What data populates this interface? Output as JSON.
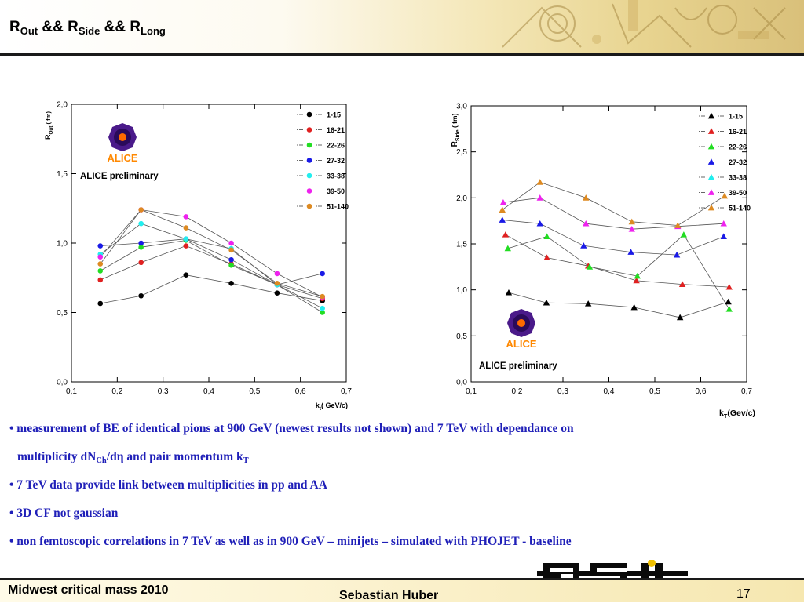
{
  "slide": {
    "title_parts": [
      {
        "t": "R",
        "sub": "Out"
      },
      {
        "t": " && R",
        "sub": "Side"
      },
      {
        "t": " && R",
        "sub": "Long"
      }
    ]
  },
  "bullets": [
    {
      "text": "• measurement of BE of identical pions at 900 GeV (newest results not shown) and 7 TeV with dependance on"
    },
    {
      "pre": "multiplicity dN",
      "sub1": "Ch",
      "mid": "/dη and pair momentum k",
      "sub2": "T"
    },
    {
      "text": "• 7 TeV data provide link between multiplicities in pp and AA"
    },
    {
      "text": "• 3D CF not gaussian"
    },
    {
      "text": "• non femtoscopic correlations in 7 TeV as well as in 900 GeV – minijets – simulated with PHOJET - baseline"
    }
  ],
  "footer": {
    "left": "Midwest critical mass 2010",
    "center": "Sebastian Huber",
    "page": "17",
    "logo_text": "GSI"
  },
  "colors": {
    "bullet_text": "#1f1fb8",
    "series": [
      "#000000",
      "#e02020",
      "#22dd22",
      "#1a1ae6",
      "#22eeee",
      "#ee22ee",
      "#dd8a22"
    ]
  },
  "chart_data": [
    {
      "type": "scatter",
      "marker": "circle",
      "badge": "ALICE",
      "badge_text": "ALICE preliminary",
      "ylabel_main": "R",
      "ylabel_sub": "Out",
      "ylabel_unit": "( fm)",
      "xlabel_main": "k",
      "xlabel_sub": "t",
      "xlabel_unit": "( GeV/c)",
      "xlim": [
        0.1,
        0.7
      ],
      "ylim": [
        0.0,
        2.0
      ],
      "xticks": [
        "0,1",
        "0,2",
        "0,3",
        "0,4",
        "0,5",
        "0,6",
        "0,7"
      ],
      "yticks": [
        "0,0",
        "0,5",
        "1,0",
        "1,5",
        "2,0"
      ],
      "x": [
        0.163,
        0.252,
        0.35,
        0.449,
        0.549,
        0.648
      ],
      "series": [
        {
          "name": "1-15",
          "values": [
            0.565,
            0.62,
            0.77,
            0.71,
            0.64,
            0.585
          ]
        },
        {
          "name": "16-21",
          "values": [
            0.735,
            0.86,
            0.98,
            0.85,
            0.7,
            0.6
          ]
        },
        {
          "name": "22-26",
          "values": [
            0.8,
            0.97,
            1.02,
            0.84,
            0.7,
            0.5
          ]
        },
        {
          "name": "27-32",
          "values": [
            0.98,
            1.0,
            1.03,
            0.88,
            0.7,
            0.78
          ]
        },
        {
          "name": "33-38",
          "values": [
            0.92,
            1.14,
            1.03,
            0.96,
            0.7,
            0.53
          ]
        },
        {
          "name": "39-50",
          "values": [
            0.9,
            1.24,
            1.19,
            1.0,
            0.78,
            0.61
          ]
        },
        {
          "name": "51-140",
          "values": [
            0.85,
            1.24,
            1.11,
            0.95,
            0.71,
            0.615
          ]
        }
      ]
    },
    {
      "type": "scatter",
      "marker": "triangle",
      "badge": "ALICE",
      "badge_text": "ALICE preliminary",
      "ylabel_main": "R",
      "ylabel_sub": "Side",
      "ylabel_unit": "( fm)",
      "xlabel_main": "k",
      "xlabel_sub": "T",
      "xlabel_unit": "(Gev/c)",
      "xlim": [
        0.1,
        0.7
      ],
      "ylim": [
        0.0,
        3.0
      ],
      "xticks": [
        "0,1",
        "0,2",
        "0,3",
        "0,4",
        "0,5",
        "0,6",
        "0,7"
      ],
      "yticks": [
        "0,0",
        "0,5",
        "1,0",
        "1,5",
        "2,0",
        "2,5",
        "3,0"
      ],
      "series": [
        {
          "name": "1-15",
          "x": [
            0.182,
            0.264,
            0.355,
            0.455,
            0.555,
            0.66
          ],
          "values": [
            0.97,
            0.86,
            0.85,
            0.81,
            0.7,
            0.87
          ]
        },
        {
          "name": "16-21",
          "x": [
            0.175,
            0.265,
            0.355,
            0.46,
            0.56,
            0.662
          ],
          "values": [
            1.6,
            1.35,
            1.26,
            1.1,
            1.06,
            1.03
          ]
        },
        {
          "name": "22-26",
          "x": [
            0.18,
            0.265,
            0.358,
            0.462,
            0.563,
            0.662
          ],
          "values": [
            1.45,
            1.58,
            1.25,
            1.15,
            1.6,
            0.79
          ]
        },
        {
          "name": "27-32",
          "x": [
            0.168,
            0.25,
            0.345,
            0.448,
            0.548,
            0.65
          ],
          "values": [
            1.76,
            1.72,
            1.48,
            1.41,
            1.38,
            1.58
          ]
        },
        {
          "name": "33-38",
          "x": [],
          "values": []
        },
        {
          "name": "39-50",
          "x": [
            0.17,
            0.25,
            0.35,
            0.45,
            0.55,
            0.65
          ],
          "values": [
            1.95,
            2.0,
            1.72,
            1.66,
            1.69,
            1.72
          ]
        },
        {
          "name": "51-140",
          "x": [
            0.168,
            0.25,
            0.35,
            0.45,
            0.55,
            0.652
          ],
          "values": [
            1.87,
            2.17,
            2.0,
            1.74,
            1.7,
            2.02
          ]
        }
      ]
    }
  ]
}
